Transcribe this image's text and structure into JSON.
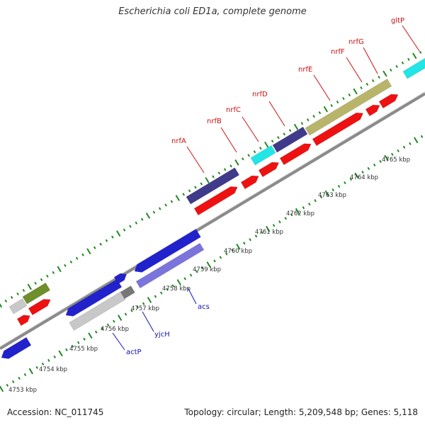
{
  "title": "Escherichia coli ED1a, complete genome",
  "footer": {
    "accession": "Accession: NC_011745",
    "stats": "Topology: circular; Length: 5,209,548 bp; Genes: 5,118"
  },
  "colors": {
    "forward": "#2222cc",
    "reverse": "#ee1111",
    "purple": "#3f3a8a",
    "lavender": "#7b74dd",
    "cyan": "#22e6e6",
    "olive": "#b8b56a",
    "green": "#6f8f2a",
    "gray": "#c8c8c8",
    "darkgray": "#777777",
    "tick": "#228822",
    "backbone": "#8a8a8a",
    "upperLabel": "#cc1111",
    "lowerLabel": "#1111bb"
  },
  "scale": {
    "ticks": [
      "4753 kbp",
      "4754 kbp",
      "4755 kbp",
      "4756 kbp",
      "4757 kbp",
      "4758 kbp",
      "4759 kbp",
      "4760 kbp",
      "4761 kbp",
      "4762 kbp",
      "4763 kbp",
      "4764 kbp",
      "4765 kbp"
    ]
  },
  "genes_upper": [
    "nrfA",
    "nrfB",
    "nrfC",
    "nrfD",
    "nrfE",
    "nrfF",
    "nrfG",
    "gltP"
  ],
  "genes_lower": [
    "actP",
    "yjcH",
    "acs"
  ]
}
